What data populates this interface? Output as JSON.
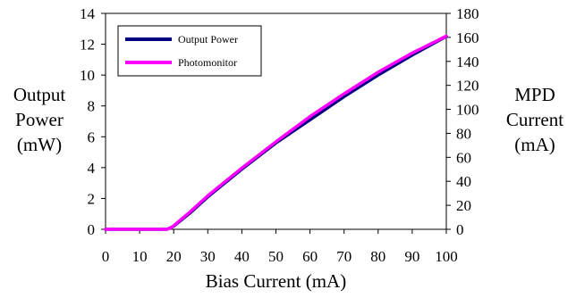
{
  "chart_data": {
    "type": "line",
    "xlabel": "Bias Current (mA)",
    "ylabel": [
      "Output",
      "Power",
      "(mW)"
    ],
    "y2label": [
      "MPD",
      "Current",
      "(mA)"
    ],
    "xlim": [
      0,
      100
    ],
    "ylim": [
      0,
      14
    ],
    "y2lim": [
      0,
      180
    ],
    "x_ticks": [
      0,
      10,
      20,
      30,
      40,
      50,
      60,
      70,
      80,
      90,
      100
    ],
    "y_ticks": [
      0,
      2,
      4,
      6,
      8,
      10,
      12,
      14
    ],
    "y2_ticks": [
      0,
      20,
      40,
      60,
      80,
      100,
      120,
      140,
      160,
      180
    ],
    "grid": false,
    "legend_position": "top-left",
    "series": [
      {
        "name": "Output Power",
        "axis": "left",
        "color": "#000080",
        "x": [
          0,
          10,
          18,
          19,
          20,
          25,
          30,
          40,
          50,
          60,
          70,
          80,
          90,
          100
        ],
        "y": [
          0,
          0,
          0,
          0.1,
          0.2,
          1.1,
          2.1,
          3.9,
          5.6,
          7.1,
          8.6,
          10.0,
          11.3,
          12.5
        ]
      },
      {
        "name": "Photomonitor",
        "axis": "right",
        "color": "#ff00ff",
        "x": [
          0,
          10,
          18,
          19,
          20,
          25,
          30,
          40,
          50,
          60,
          70,
          80,
          90,
          100
        ],
        "y": [
          0,
          0,
          0,
          1,
          3,
          15,
          28,
          51,
          73,
          94,
          113,
          131,
          147,
          161
        ]
      }
    ]
  }
}
